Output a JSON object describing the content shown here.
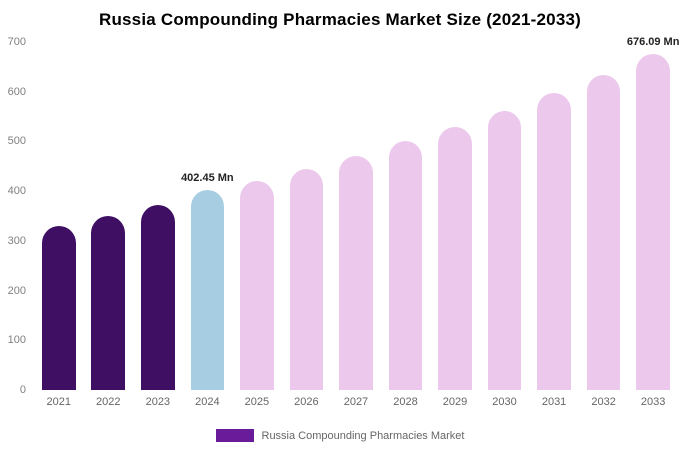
{
  "title": "Russia Compounding Pharmacies Market Size (2021-2033)",
  "legend": {
    "label": "Russia Compounding Pharmacies Market",
    "color": "#6a1b9a"
  },
  "colors": {
    "default": "#3f0f63",
    "highlight": "#a6cde2",
    "forecast": "#ecc8ec"
  },
  "chart_data": {
    "type": "bar",
    "title": "Russia Compounding Pharmacies Market Size (2021-2033)",
    "categories": [
      "2021",
      "2022",
      "2023",
      "2024",
      "2025",
      "2026",
      "2027",
      "2028",
      "2029",
      "2030",
      "2031",
      "2032",
      "2033"
    ],
    "values": [
      330,
      350,
      373,
      402.45,
      420,
      445,
      470,
      500,
      530,
      562,
      597,
      633,
      676.09
    ],
    "bar_styles": [
      "default",
      "default",
      "default",
      "highlight",
      "forecast",
      "forecast",
      "forecast",
      "forecast",
      "forecast",
      "forecast",
      "forecast",
      "forecast",
      "forecast"
    ],
    "annotations": [
      {
        "index": 3,
        "text": "402.45 Mn"
      },
      {
        "index": 12,
        "text": "676.09 Mn"
      }
    ],
    "xlabel": "",
    "ylabel": "",
    "ylim": [
      0,
      700
    ],
    "yticks": [
      0,
      100,
      200,
      300,
      400,
      500,
      600,
      700
    ],
    "grid": false,
    "legend_position": "bottom"
  }
}
